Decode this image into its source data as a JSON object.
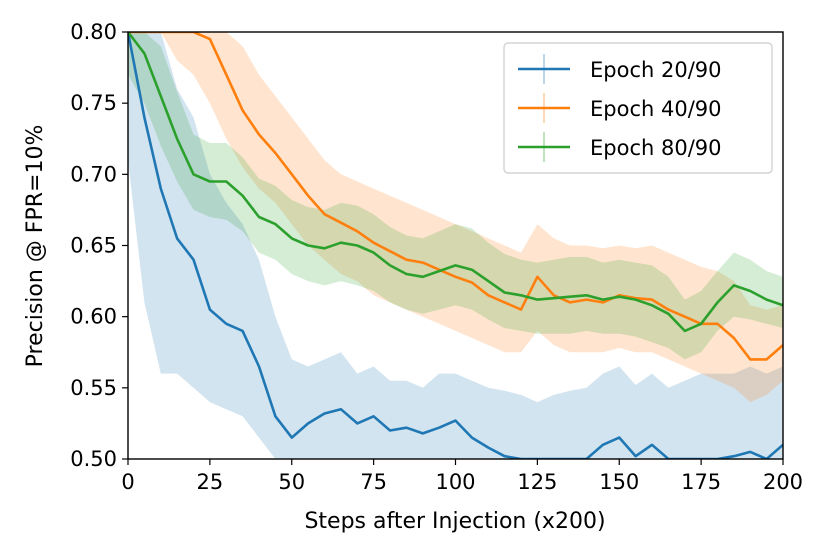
{
  "chart_data": {
    "type": "line",
    "title": "",
    "xlabel": "Steps after Injection (x200)",
    "ylabel": "Precision @ FPR=10%",
    "xlim": [
      0,
      200
    ],
    "ylim": [
      0.5,
      0.8
    ],
    "xticks": [
      "0",
      "25",
      "50",
      "75",
      "100",
      "125",
      "150",
      "175",
      "200"
    ],
    "yticks": [
      "0.50",
      "0.55",
      "0.60",
      "0.65",
      "0.70",
      "0.75",
      "0.80"
    ],
    "grid": false,
    "legend_position": "top-right",
    "shaded_band": "error band around each series",
    "series": [
      {
        "name": "Epoch 20/90",
        "color": "#1f77b4",
        "x": [
          0,
          5,
          10,
          15,
          20,
          25,
          30,
          35,
          40,
          45,
          50,
          55,
          60,
          65,
          70,
          75,
          80,
          85,
          90,
          95,
          100,
          105,
          110,
          115,
          120,
          125,
          130,
          135,
          140,
          145,
          150,
          155,
          160,
          165,
          170,
          175,
          180,
          185,
          190,
          195,
          200
        ],
        "y": [
          0.8,
          0.74,
          0.69,
          0.655,
          0.64,
          0.605,
          0.595,
          0.59,
          0.565,
          0.53,
          0.515,
          0.525,
          0.532,
          0.535,
          0.525,
          0.53,
          0.52,
          0.522,
          0.518,
          0.522,
          0.527,
          0.515,
          0.508,
          0.502,
          0.5,
          0.5,
          0.5,
          0.5,
          0.5,
          0.51,
          0.515,
          0.502,
          0.51,
          0.5,
          0.5,
          0.5,
          0.5,
          0.502,
          0.505,
          0.5,
          0.51
        ],
        "lower": [
          0.71,
          0.61,
          0.56,
          0.56,
          0.55,
          0.54,
          0.535,
          0.53,
          0.515,
          0.5,
          0.5,
          0.5,
          0.5,
          0.5,
          0.5,
          0.5,
          0.5,
          0.5,
          0.5,
          0.5,
          0.5,
          0.5,
          0.5,
          0.5,
          0.5,
          0.5,
          0.5,
          0.5,
          0.5,
          0.5,
          0.5,
          0.5,
          0.5,
          0.5,
          0.5,
          0.5,
          0.5,
          0.5,
          0.5,
          0.5,
          0.5
        ],
        "upper": [
          0.8,
          0.8,
          0.8,
          0.76,
          0.74,
          0.7,
          0.68,
          0.665,
          0.64,
          0.6,
          0.57,
          0.565,
          0.57,
          0.575,
          0.56,
          0.565,
          0.555,
          0.555,
          0.55,
          0.56,
          0.56,
          0.555,
          0.55,
          0.548,
          0.545,
          0.54,
          0.545,
          0.548,
          0.55,
          0.56,
          0.565,
          0.552,
          0.56,
          0.55,
          0.555,
          0.56,
          0.56,
          0.56,
          0.565,
          0.56,
          0.565
        ]
      },
      {
        "name": "Epoch 40/90",
        "color": "#ff7f0e",
        "x": [
          0,
          5,
          10,
          15,
          20,
          25,
          30,
          35,
          40,
          45,
          50,
          55,
          60,
          65,
          70,
          75,
          80,
          85,
          90,
          95,
          100,
          105,
          110,
          115,
          120,
          125,
          130,
          135,
          140,
          145,
          150,
          155,
          160,
          165,
          170,
          175,
          180,
          185,
          190,
          195,
          200
        ],
        "y": [
          0.8,
          0.8,
          0.8,
          0.8,
          0.8,
          0.795,
          0.77,
          0.745,
          0.728,
          0.715,
          0.7,
          0.685,
          0.672,
          0.666,
          0.66,
          0.652,
          0.646,
          0.64,
          0.638,
          0.633,
          0.628,
          0.624,
          0.615,
          0.61,
          0.605,
          0.628,
          0.615,
          0.61,
          0.612,
          0.61,
          0.615,
          0.613,
          0.612,
          0.605,
          0.6,
          0.595,
          0.595,
          0.585,
          0.57,
          0.57,
          0.58
        ],
        "lower": [
          0.8,
          0.8,
          0.8,
          0.78,
          0.77,
          0.75,
          0.725,
          0.705,
          0.69,
          0.68,
          0.665,
          0.65,
          0.64,
          0.63,
          0.625,
          0.615,
          0.61,
          0.605,
          0.6,
          0.595,
          0.59,
          0.585,
          0.58,
          0.575,
          0.575,
          0.59,
          0.58,
          0.575,
          0.575,
          0.575,
          0.578,
          0.575,
          0.575,
          0.57,
          0.565,
          0.56,
          0.555,
          0.55,
          0.54,
          0.545,
          0.555
        ],
        "upper": [
          0.8,
          0.8,
          0.8,
          0.8,
          0.8,
          0.8,
          0.8,
          0.79,
          0.77,
          0.755,
          0.74,
          0.725,
          0.71,
          0.7,
          0.695,
          0.69,
          0.685,
          0.68,
          0.675,
          0.67,
          0.665,
          0.66,
          0.655,
          0.65,
          0.645,
          0.665,
          0.655,
          0.65,
          0.65,
          0.648,
          0.65,
          0.648,
          0.65,
          0.645,
          0.64,
          0.635,
          0.632,
          0.625,
          0.608,
          0.605,
          0.608
        ]
      },
      {
        "name": "Epoch 80/90",
        "color": "#2ca02c",
        "x": [
          0,
          5,
          10,
          15,
          20,
          25,
          30,
          35,
          40,
          45,
          50,
          55,
          60,
          65,
          70,
          75,
          80,
          85,
          90,
          95,
          100,
          105,
          110,
          115,
          120,
          125,
          130,
          135,
          140,
          145,
          150,
          155,
          160,
          165,
          170,
          175,
          180,
          185,
          190,
          195,
          200
        ],
        "y": [
          0.8,
          0.785,
          0.755,
          0.725,
          0.7,
          0.695,
          0.695,
          0.685,
          0.67,
          0.665,
          0.655,
          0.65,
          0.648,
          0.652,
          0.65,
          0.645,
          0.636,
          0.63,
          0.628,
          0.632,
          0.636,
          0.633,
          0.625,
          0.617,
          0.615,
          0.612,
          0.613,
          0.614,
          0.615,
          0.612,
          0.614,
          0.612,
          0.608,
          0.602,
          0.59,
          0.595,
          0.61,
          0.622,
          0.618,
          0.612,
          0.608
        ],
        "lower": [
          0.77,
          0.75,
          0.72,
          0.695,
          0.675,
          0.67,
          0.668,
          0.66,
          0.645,
          0.64,
          0.63,
          0.625,
          0.622,
          0.625,
          0.622,
          0.618,
          0.61,
          0.605,
          0.602,
          0.605,
          0.608,
          0.605,
          0.598,
          0.592,
          0.59,
          0.588,
          0.588,
          0.588,
          0.59,
          0.588,
          0.588,
          0.586,
          0.582,
          0.578,
          0.57,
          0.575,
          0.59,
          0.6,
          0.598,
          0.595,
          0.592
        ],
        "upper": [
          0.8,
          0.8,
          0.79,
          0.758,
          0.728,
          0.722,
          0.722,
          0.712,
          0.697,
          0.692,
          0.682,
          0.677,
          0.675,
          0.68,
          0.678,
          0.672,
          0.663,
          0.657,
          0.655,
          0.66,
          0.665,
          0.662,
          0.652,
          0.644,
          0.64,
          0.638,
          0.64,
          0.642,
          0.642,
          0.638,
          0.64,
          0.638,
          0.636,
          0.628,
          0.612,
          0.618,
          0.632,
          0.645,
          0.64,
          0.632,
          0.628
        ]
      }
    ]
  }
}
